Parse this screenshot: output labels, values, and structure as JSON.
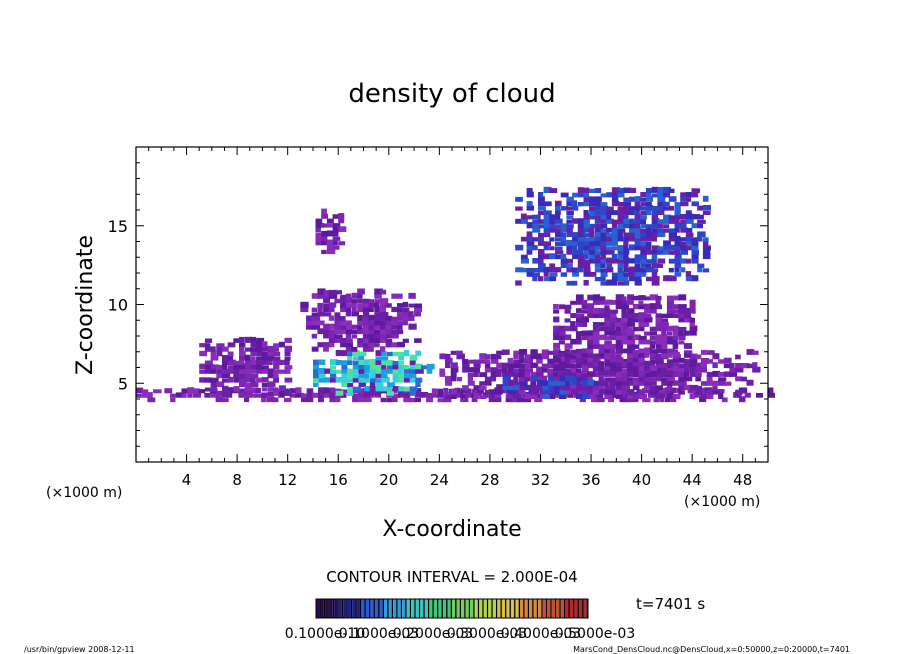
{
  "chart_data": {
    "type": "heatmap",
    "title": "density of cloud",
    "xlabel": "X-coordinate",
    "ylabel": "Z-coordinate",
    "x_unit_left": "(×1000 m)",
    "x_unit_right": "(×1000 m)",
    "xlim": [
      0,
      50
    ],
    "ylim": [
      0,
      20
    ],
    "x_ticks": [
      4,
      8,
      12,
      16,
      20,
      24,
      28,
      32,
      36,
      40,
      44,
      48
    ],
    "y_ticks": [
      5,
      10,
      15
    ],
    "contour_interval": "CONTOUR INTERVAL = 2.000E-04",
    "time_label": "t=7401 s",
    "colorbar": {
      "colors": [
        "#2a0a55",
        "#1a1f8c",
        "#2a5bd0",
        "#2f9be0",
        "#38c7c0",
        "#3fc77a",
        "#6ed05a",
        "#b0d64e",
        "#d8c24a",
        "#d98a3c",
        "#c9502f",
        "#b02a2a"
      ],
      "labels": [
        "0.1000e-10",
        "0.1000e-03",
        "0.2000e-03",
        "0.3000e-03",
        "0.4000e-03",
        "0.5000e-03"
      ]
    },
    "regions": [
      {
        "x": [
          0,
          50
        ],
        "z": [
          3.8,
          4.6
        ],
        "level": "low"
      },
      {
        "x": [
          5,
          12
        ],
        "z": [
          4.2,
          7.8
        ],
        "level": "low"
      },
      {
        "x": [
          14,
          23
        ],
        "z": [
          4.2,
          6.8
        ],
        "level": "high"
      },
      {
        "x": [
          13,
          22
        ],
        "z": [
          7,
          10.8
        ],
        "level": "low"
      },
      {
        "x": [
          14.2,
          16
        ],
        "z": [
          13.2,
          15.8
        ],
        "level": "low"
      },
      {
        "x": [
          24,
          49
        ],
        "z": [
          4,
          7
        ],
        "level": "low"
      },
      {
        "x": [
          29,
          37
        ],
        "z": [
          4,
          5.2
        ],
        "level": "mid"
      },
      {
        "x": [
          33,
          44
        ],
        "z": [
          5.5,
          10.5
        ],
        "level": "low"
      },
      {
        "x": [
          30,
          45
        ],
        "z": [
          11.2,
          17.2
        ],
        "level": "mid"
      }
    ]
  },
  "footer": {
    "program": "/usr/bin/gpview   2008-12-11",
    "source": "MarsCond_DensCloud.nc@DensCloud,x=0:50000,z=0:20000,t=7401"
  }
}
